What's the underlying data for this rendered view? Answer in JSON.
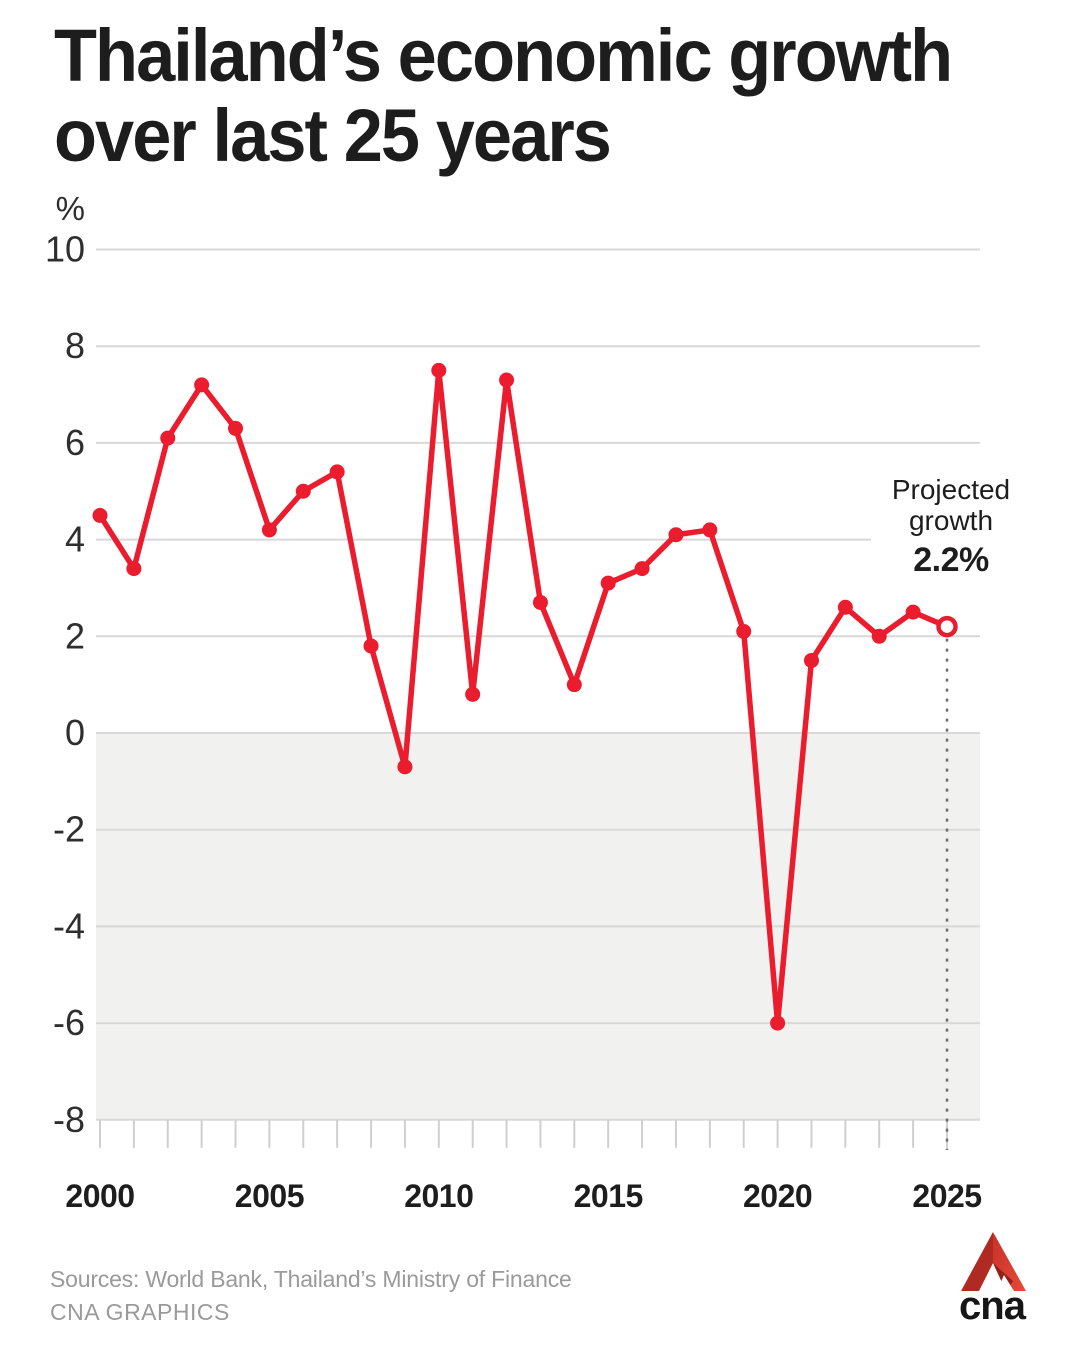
{
  "header": {
    "title_line1": "Thailand’s economic growth",
    "title_line2": "over last 25 years"
  },
  "chart_data": {
    "type": "line",
    "title": "Thailand’s economic growth over last 25 years",
    "unit_label": "%",
    "x": [
      2000,
      2001,
      2002,
      2003,
      2004,
      2005,
      2006,
      2007,
      2008,
      2009,
      2010,
      2011,
      2012,
      2013,
      2014,
      2015,
      2016,
      2017,
      2018,
      2019,
      2020,
      2021,
      2022,
      2023,
      2024,
      2025
    ],
    "values": [
      4.5,
      3.4,
      6.1,
      7.2,
      6.3,
      4.2,
      5.0,
      5.4,
      1.8,
      -0.7,
      7.5,
      0.8,
      7.3,
      2.7,
      1.0,
      3.1,
      3.4,
      4.1,
      4.2,
      2.1,
      -6.0,
      1.5,
      2.6,
      2.0,
      2.5,
      2.2
    ],
    "projected": {
      "year": 2025,
      "value": 2.2,
      "label_line1": "Projected",
      "label_line2": "growth",
      "value_label": "2.2%"
    },
    "ylim": [
      -8,
      10
    ],
    "yticks": [
      10,
      8,
      6,
      4,
      2,
      0,
      -2,
      -4,
      -6,
      -8
    ],
    "xtick_labels": [
      2000,
      2005,
      2010,
      2015,
      2020,
      2025
    ],
    "grid": "horizontal",
    "negative_band": true,
    "legend": "none",
    "colors": {
      "line": "#ea1c2d",
      "grid": "#d8d8d8",
      "band": "#f1f1ef",
      "tick": "#cfcfcf",
      "dashed": "#6b6b6b",
      "axis_text": "#2e2e2e",
      "year_text": "#1d1d1d"
    }
  },
  "footer": {
    "sources": "Sources: World Bank, Thailand’s Ministry of Finance",
    "credit": "CNA GRAPHICS",
    "logo_text": "cna",
    "logo_red_dark": "#ae2a22",
    "logo_red_bright": "#e8493a"
  }
}
